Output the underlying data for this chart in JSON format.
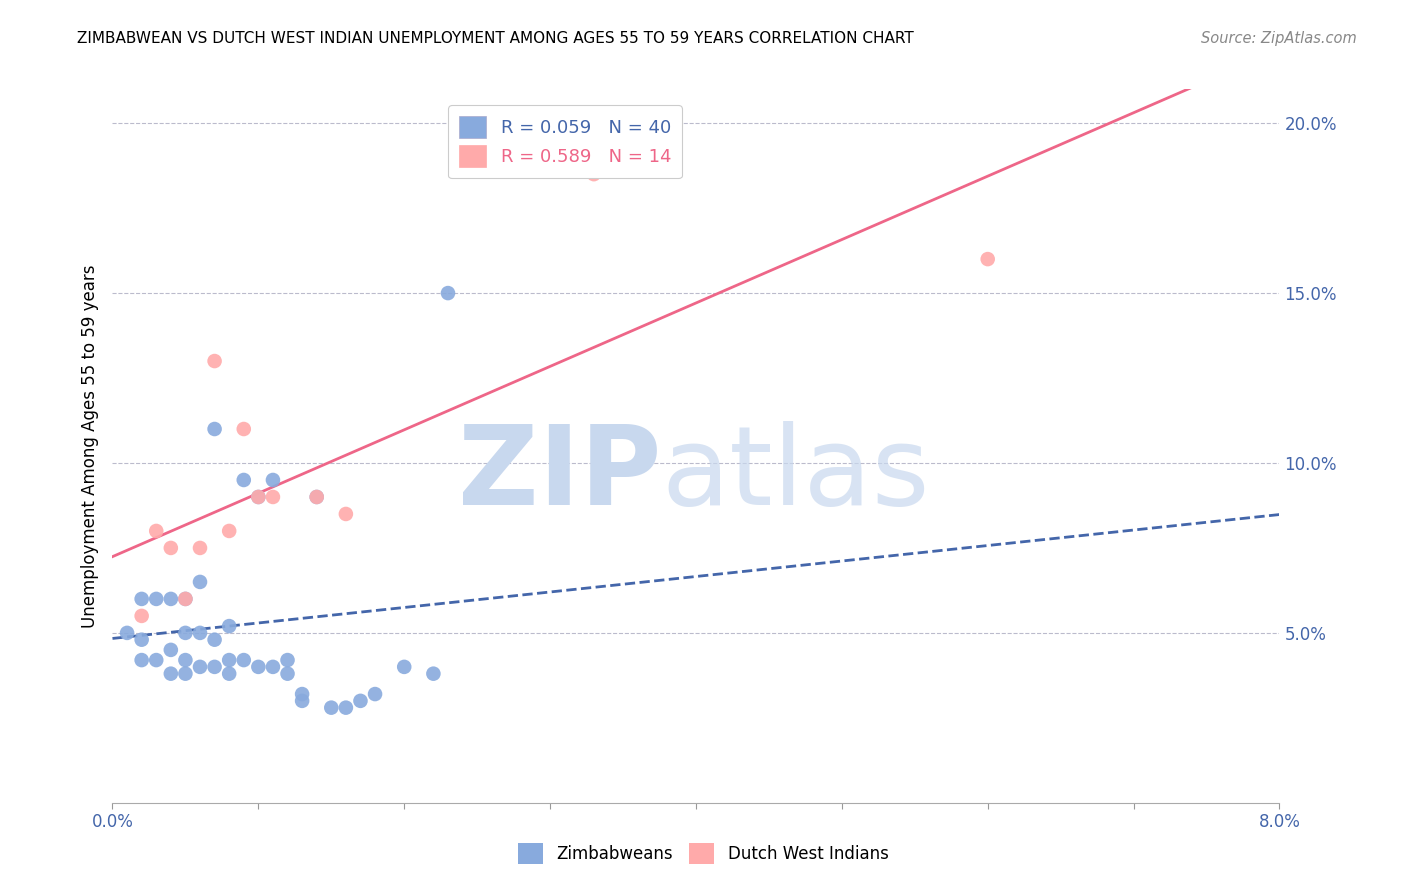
{
  "title": "ZIMBABWEAN VS DUTCH WEST INDIAN UNEMPLOYMENT AMONG AGES 55 TO 59 YEARS CORRELATION CHART",
  "source": "Source: ZipAtlas.com",
  "ylabel": "Unemployment Among Ages 55 to 59 years",
  "xlim": [
    0.0,
    0.08
  ],
  "ylim": [
    0.0,
    0.21
  ],
  "xticks": [
    0.0,
    0.01,
    0.02,
    0.03,
    0.04,
    0.05,
    0.06,
    0.07,
    0.08
  ],
  "yticks": [
    0.0,
    0.05,
    0.1,
    0.15,
    0.2
  ],
  "yticklabels": [
    "",
    "5.0%",
    "10.0%",
    "15.0%",
    "20.0%"
  ],
  "xticklabels": [
    "0.0%",
    "",
    "",
    "",
    "",
    "",
    "",
    "",
    "8.0%"
  ],
  "blue_color": "#88AADD",
  "pink_color": "#FFAAAA",
  "blue_line_color": "#4466AA",
  "pink_line_color": "#EE6688",
  "zimbabwean_x": [
    0.001,
    0.002,
    0.002,
    0.002,
    0.003,
    0.003,
    0.004,
    0.004,
    0.004,
    0.005,
    0.005,
    0.005,
    0.005,
    0.006,
    0.006,
    0.006,
    0.007,
    0.007,
    0.007,
    0.008,
    0.008,
    0.008,
    0.009,
    0.009,
    0.01,
    0.01,
    0.011,
    0.011,
    0.012,
    0.012,
    0.013,
    0.013,
    0.014,
    0.015,
    0.016,
    0.017,
    0.018,
    0.02,
    0.022,
    0.023
  ],
  "zimbabwean_y": [
    0.05,
    0.042,
    0.048,
    0.06,
    0.042,
    0.06,
    0.038,
    0.045,
    0.06,
    0.038,
    0.042,
    0.05,
    0.06,
    0.04,
    0.05,
    0.065,
    0.04,
    0.048,
    0.11,
    0.038,
    0.042,
    0.052,
    0.042,
    0.095,
    0.04,
    0.09,
    0.04,
    0.095,
    0.038,
    0.042,
    0.03,
    0.032,
    0.09,
    0.028,
    0.028,
    0.03,
    0.032,
    0.04,
    0.038,
    0.15
  ],
  "dutch_x": [
    0.002,
    0.003,
    0.004,
    0.005,
    0.006,
    0.007,
    0.008,
    0.009,
    0.01,
    0.011,
    0.014,
    0.016,
    0.033,
    0.06
  ],
  "dutch_y": [
    0.055,
    0.08,
    0.075,
    0.06,
    0.075,
    0.13,
    0.08,
    0.11,
    0.09,
    0.09,
    0.09,
    0.085,
    0.185,
    0.16
  ]
}
